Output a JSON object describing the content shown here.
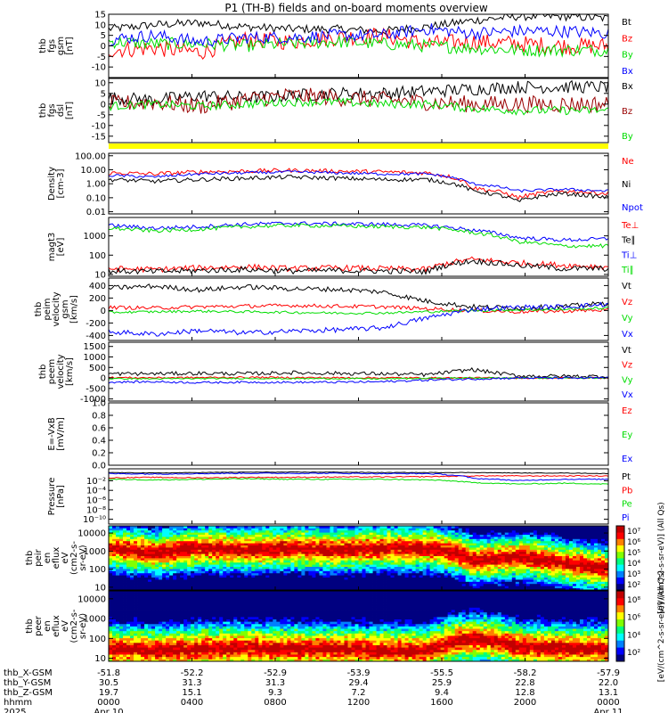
{
  "title": "P1  (TH-B) fields and on-board moments overview",
  "colors": {
    "black": "#000000",
    "red": "#ff0000",
    "green": "#00dd00",
    "blue": "#0000ff",
    "darkred": "#990000",
    "bar": "#ffff00"
  },
  "chart_data": [
    {
      "type": "line",
      "ylabel": [
        "thb",
        "fgs",
        "gsm",
        "[nT]"
      ],
      "ylim": [
        -15,
        15
      ],
      "yticks": [
        -10,
        -5,
        0,
        5,
        10,
        15
      ],
      "series": [
        {
          "name": "Bt",
          "color": "#000000",
          "baseline": [
            8,
            10,
            11,
            9,
            8,
            8,
            7,
            9,
            12,
            14,
            14,
            13
          ],
          "noise": 2
        },
        {
          "name": "Bz",
          "color": "#ff0000",
          "baseline": [
            -2,
            -1,
            -3,
            3,
            2,
            4,
            5,
            1,
            2,
            1,
            0,
            0
          ],
          "noise": 4
        },
        {
          "name": "By",
          "color": "#00dd00",
          "baseline": [
            2,
            1,
            1,
            0,
            1,
            2,
            1,
            0,
            -1,
            -2,
            -2,
            -2
          ],
          "noise": 3
        },
        {
          "name": "Bx",
          "color": "#0000ff",
          "baseline": [
            3,
            5,
            2,
            4,
            4,
            5,
            5,
            8,
            6,
            7,
            7,
            6
          ],
          "noise": 3
        }
      ]
    },
    {
      "type": "line",
      "ylabel": [
        "thb",
        "fgs",
        "dsl",
        "[nT]"
      ],
      "ylim": [
        -18,
        12
      ],
      "yticks": [
        -15,
        -10,
        -5,
        0,
        5,
        10
      ],
      "series": [
        {
          "name": "Bx",
          "color": "#000000",
          "baseline": [
            3,
            2,
            4,
            3,
            4,
            5,
            5,
            6,
            7,
            8,
            8,
            8
          ],
          "noise": 3
        },
        {
          "name": "Bz",
          "color": "#990000",
          "baseline": [
            0,
            1,
            -1,
            2,
            4,
            3,
            2,
            1,
            0,
            0,
            0,
            0
          ],
          "noise": 4
        },
        {
          "name": "By",
          "color": "#00dd00",
          "baseline": [
            -1,
            0,
            -1,
            0,
            1,
            1,
            0,
            0,
            -2,
            -3,
            -3,
            -3
          ],
          "noise": 2
        }
      ]
    },
    {
      "type": "line",
      "ylabel": [
        "Density",
        "[cm-3]"
      ],
      "yscale": "log",
      "ylim": [
        0.007,
        150
      ],
      "yticks": [
        0.01,
        0.1,
        1,
        10,
        100
      ],
      "ytick_labels": [
        "0.01",
        "0.10",
        "1.00",
        "10.00",
        "100.00"
      ],
      "series": [
        {
          "name": "Ne",
          "color": "#ff0000",
          "baseline": [
            6,
            5,
            7,
            8,
            9,
            8,
            7,
            6,
            0.5,
            0.1,
            0.3,
            0.2
          ],
          "noise": 0.15
        },
        {
          "name": "Ni",
          "color": "#000000",
          "baseline": [
            2,
            1.5,
            2,
            2.5,
            3,
            2.5,
            2,
            2,
            0.3,
            0.05,
            0.2,
            0.1
          ],
          "noise": 0.15
        },
        {
          "name": "Npot",
          "color": "#0000ff",
          "baseline": [
            4,
            3,
            5,
            6,
            7,
            6,
            5,
            5,
            1,
            0.3,
            0.4,
            0.3
          ],
          "noise": 0.1
        }
      ]
    },
    {
      "type": "line",
      "ylabel": [
        "magt3",
        "[eV]"
      ],
      "yscale": "log",
      "ylim": [
        8,
        9000
      ],
      "yticks": [
        10,
        100,
        1000
      ],
      "ytick_labels": [
        "10",
        "100",
        "1000"
      ],
      "series": [
        {
          "name": "Te⊥",
          "color": "#ff0000",
          "baseline": [
            20,
            18,
            22,
            25,
            20,
            22,
            20,
            18,
            60,
            40,
            30,
            25
          ],
          "noise": 0.15
        },
        {
          "name": "Te∥",
          "color": "#000000",
          "baseline": [
            15,
            14,
            16,
            18,
            15,
            16,
            15,
            14,
            50,
            30,
            20,
            20
          ],
          "noise": 0.15
        },
        {
          "name": "Ti⊥",
          "color": "#0000ff",
          "baseline": [
            3500,
            2500,
            3000,
            4000,
            4500,
            4200,
            4000,
            3500,
            2000,
            800,
            600,
            700
          ],
          "noise": 0.1
        },
        {
          "name": "Ti∥",
          "color": "#00dd00",
          "baseline": [
            2500,
            1800,
            2200,
            3000,
            3500,
            3300,
            3000,
            2800,
            1500,
            500,
            300,
            300
          ],
          "noise": 0.1
        }
      ]
    },
    {
      "type": "line",
      "ylabel": [
        "thb",
        "peim",
        "velocity",
        "gsm",
        "[km/s]"
      ],
      "ylim": [
        -480,
        520
      ],
      "yticks": [
        -400,
        -200,
        0,
        200,
        400
      ],
      "series": [
        {
          "name": "Vt",
          "color": "#000000",
          "baseline": [
            360,
            390,
            330,
            380,
            350,
            340,
            300,
            150,
            60,
            40,
            60,
            120
          ],
          "noise": 40
        },
        {
          "name": "Vz",
          "color": "#ff0000",
          "baseline": [
            50,
            40,
            60,
            70,
            80,
            70,
            60,
            30,
            0,
            -20,
            -10,
            10
          ],
          "noise": 30
        },
        {
          "name": "Vy",
          "color": "#00dd00",
          "baseline": [
            -30,
            -20,
            -10,
            -20,
            -30,
            -40,
            -40,
            -20,
            0,
            10,
            20,
            40
          ],
          "noise": 20
        },
        {
          "name": "Vx",
          "color": "#0000ff",
          "baseline": [
            -340,
            -380,
            -320,
            -360,
            -330,
            -310,
            -280,
            -120,
            20,
            50,
            60,
            100
          ],
          "noise": 40
        }
      ]
    },
    {
      "type": "line",
      "ylabel": [
        "thb",
        "peem",
        "velocity",
        "[km/s]"
      ],
      "ylim": [
        -1100,
        1700
      ],
      "yticks": [
        -1000,
        -500,
        0,
        500,
        1000,
        1500
      ],
      "series": [
        {
          "name": "Vt",
          "color": "#000000",
          "baseline": [
            200,
            200,
            220,
            200,
            250,
            220,
            200,
            150,
            400,
            100,
            80,
            80
          ],
          "noise": 90
        },
        {
          "name": "Vz",
          "color": "#ff0000",
          "baseline": [
            20,
            10,
            20,
            30,
            20,
            10,
            10,
            0,
            0,
            0,
            0,
            0
          ],
          "noise": 40
        },
        {
          "name": "Vy",
          "color": "#00dd00",
          "baseline": [
            -30,
            -40,
            -30,
            -20,
            -30,
            -30,
            -40,
            -20,
            0,
            0,
            0,
            0
          ],
          "noise": 30
        },
        {
          "name": "Vx",
          "color": "#0000ff",
          "baseline": [
            -200,
            -180,
            -220,
            -200,
            -210,
            -200,
            -180,
            -100,
            -50,
            0,
            0,
            0
          ],
          "noise": 50
        }
      ]
    },
    {
      "type": "line",
      "ylabel": [
        "E=-VxB",
        "[mV/m]"
      ],
      "ylim": [
        0,
        1
      ],
      "yticks": [
        0,
        0.2,
        0.4,
        0.6,
        0.8,
        1.0
      ],
      "ytick_labels": [
        "0.0",
        "0.2",
        "0.4",
        "0.6",
        "0.8",
        "1.0"
      ],
      "series": [
        {
          "name": "Ez",
          "color": "#ff0000",
          "baseline": [],
          "noise": 0
        },
        {
          "name": "Ey",
          "color": "#00dd00",
          "baseline": [],
          "noise": 0
        },
        {
          "name": "Ex",
          "color": "#0000ff",
          "baseline": [],
          "noise": 0
        }
      ]
    },
    {
      "type": "line",
      "ylabel": [
        "Pressure",
        "[nPa]"
      ],
      "yscale": "log",
      "ylim": [
        1e-11,
        3
      ],
      "yticks": [
        1e-10,
        1e-08,
        1e-06,
        0.0001,
        0.01
      ],
      "ytick_labels": [
        "10⁻¹⁰",
        "10⁻⁸",
        "10⁻⁶",
        "10⁻⁴",
        "10⁻²"
      ],
      "series": [
        {
          "name": "Pt",
          "color": "#000000",
          "baseline": [
            0.5,
            0.4,
            0.5,
            0.6,
            0.6,
            0.6,
            0.5,
            0.5,
            0.5,
            0.4,
            0.4,
            0.3
          ],
          "noise": 0.05
        },
        {
          "name": "Pb",
          "color": "#ff0000",
          "baseline": [
            0.04,
            0.05,
            0.04,
            0.05,
            0.05,
            0.06,
            0.06,
            0.07,
            0.1,
            0.1,
            0.1,
            0.1
          ],
          "noise": 0.1
        },
        {
          "name": "Pe",
          "color": "#00dd00",
          "baseline": [
            0.02,
            0.015,
            0.02,
            0.025,
            0.02,
            0.02,
            0.02,
            0.015,
            0.004,
            0.002,
            0.003,
            0.002
          ],
          "noise": 0.1
        },
        {
          "name": "Pi",
          "color": "#0000ff",
          "baseline": [
            0.3,
            0.25,
            0.3,
            0.35,
            0.35,
            0.35,
            0.3,
            0.3,
            0.03,
            0.01,
            0.02,
            0.02
          ],
          "noise": 0.1
        }
      ]
    },
    {
      "type": "heatmap",
      "ylabel": [
        "thb",
        "peir",
        "en",
        "eflux",
        "eV",
        "(cm2-s-",
        "sr-eV)"
      ],
      "yscale": "log",
      "ylim": [
        7,
        25000
      ],
      "yticks": [
        10,
        100,
        1000,
        10000
      ],
      "ytick_labels": [
        "10",
        "100",
        "1000",
        "10000"
      ],
      "peak_energy": [
        1500,
        800,
        1500,
        1200,
        1500,
        1200,
        1500,
        1500,
        300,
        500,
        200,
        100
      ],
      "colorbar": {
        "labels": [
          "10²",
          "10³",
          "10⁴",
          "10⁵",
          "10⁶",
          "10⁷"
        ],
        "title": "[eV/(cm^2-s-sr-eV)] (All Qs)"
      }
    },
    {
      "type": "heatmap",
      "ylabel": [
        "thb",
        "peer",
        "en",
        "eflux",
        "eV",
        "(cm2-s-",
        "sr-eV)"
      ],
      "yscale": "log",
      "ylim": [
        7,
        25000
      ],
      "yticks": [
        10,
        100,
        1000,
        10000
      ],
      "ytick_labels": [
        "10",
        "100",
        "1000",
        "10000"
      ],
      "peak_energy": [
        30,
        25,
        30,
        35,
        30,
        30,
        25,
        25,
        100,
        40,
        30,
        30
      ],
      "colorbar": {
        "labels": [
          "10²",
          "10⁴",
          "10⁶",
          "10⁸"
        ],
        "title": "[eV/(cm^2-s-sr-eV)] (All Qs)"
      }
    }
  ],
  "xaxis": {
    "tick_hours": [
      0,
      4,
      8,
      12,
      16,
      20,
      24
    ],
    "rows": [
      {
        "label": "thb_X-GSM",
        "values": [
          "-51.8",
          "-52.2",
          "-52.9",
          "-53.9",
          "-55.5",
          "-58.2",
          "-57.9"
        ]
      },
      {
        "label": "thb_Y-GSM",
        "values": [
          "30.5",
          "31.3",
          "31.3",
          "29.4",
          "25.9",
          "22.8",
          "22.0"
        ]
      },
      {
        "label": "thb_Z-GSM",
        "values": [
          "19.7",
          "15.1",
          "9.3",
          "7.2",
          "9.4",
          "12.8",
          "13.1"
        ]
      },
      {
        "label": "hhmm",
        "values": [
          "0000",
          "0400",
          "0800",
          "1200",
          "1600",
          "2000",
          "0000"
        ]
      },
      {
        "label": "2025",
        "values": [
          "Apr 10",
          "",
          "",
          "",
          "",
          "",
          "Apr 11"
        ]
      }
    ]
  }
}
